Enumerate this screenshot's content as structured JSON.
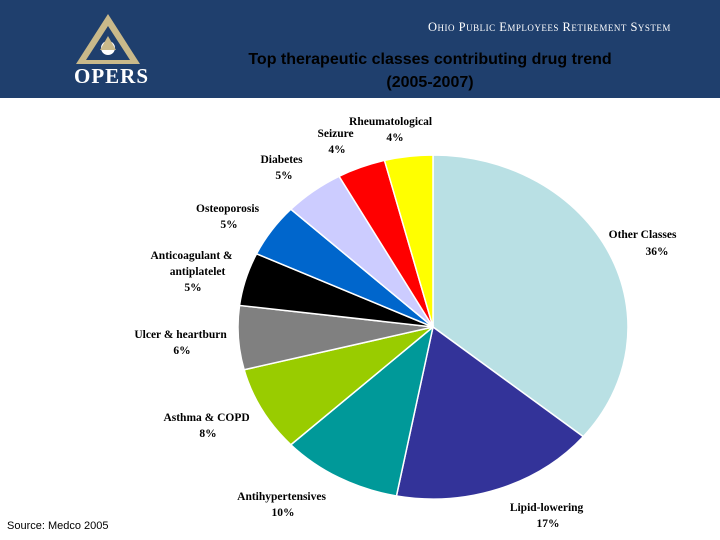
{
  "header": {
    "org_name": "Ohio Public Employees Retirement System",
    "logo_text": "OPERS",
    "logo_icon": "opers-triangle-logo-icon",
    "background_color": "#1f3f6d"
  },
  "title_lines": [
    "Top therapeutic classes contributing drug trend",
    "(2005-2007)"
  ],
  "source": "Source: Medco 2005",
  "chart_data": {
    "type": "pie",
    "title": "Top therapeutic classes contributing drug trend (2005-2007)",
    "slices": [
      {
        "label": "Other Classes",
        "value": 36,
        "display": "36%",
        "color": "#b9e0e4"
      },
      {
        "label": "Lipid-lowering",
        "value": 17,
        "display": "17%",
        "color": "#333399"
      },
      {
        "label": "Antihypertensives",
        "value": 10,
        "display": "10%",
        "color": "#009999"
      },
      {
        "label": "Asthma & COPD",
        "value": 8,
        "display": "8%",
        "color": "#99cc00"
      },
      {
        "label": "Ulcer & heartburn",
        "value": 6,
        "display": "6%",
        "color": "#808080"
      },
      {
        "label": "Anticoagulant & antiplatelet",
        "label_lines": [
          "Anticoagulant &",
          "antiplatelet"
        ],
        "value": 5,
        "display": "5%",
        "color": "#000000"
      },
      {
        "label": "Osteoporosis",
        "value": 5,
        "display": "5%",
        "color": "#0066cc"
      },
      {
        "label": "Diabetes",
        "value": 5,
        "display": "5%",
        "color": "#ccccff"
      },
      {
        "label": "Seizure",
        "value": 4,
        "display": "4%",
        "color": "#ff0000"
      },
      {
        "label": "Rheumatological",
        "value": 4,
        "display": "4%",
        "color": "#ffff00"
      }
    ]
  }
}
